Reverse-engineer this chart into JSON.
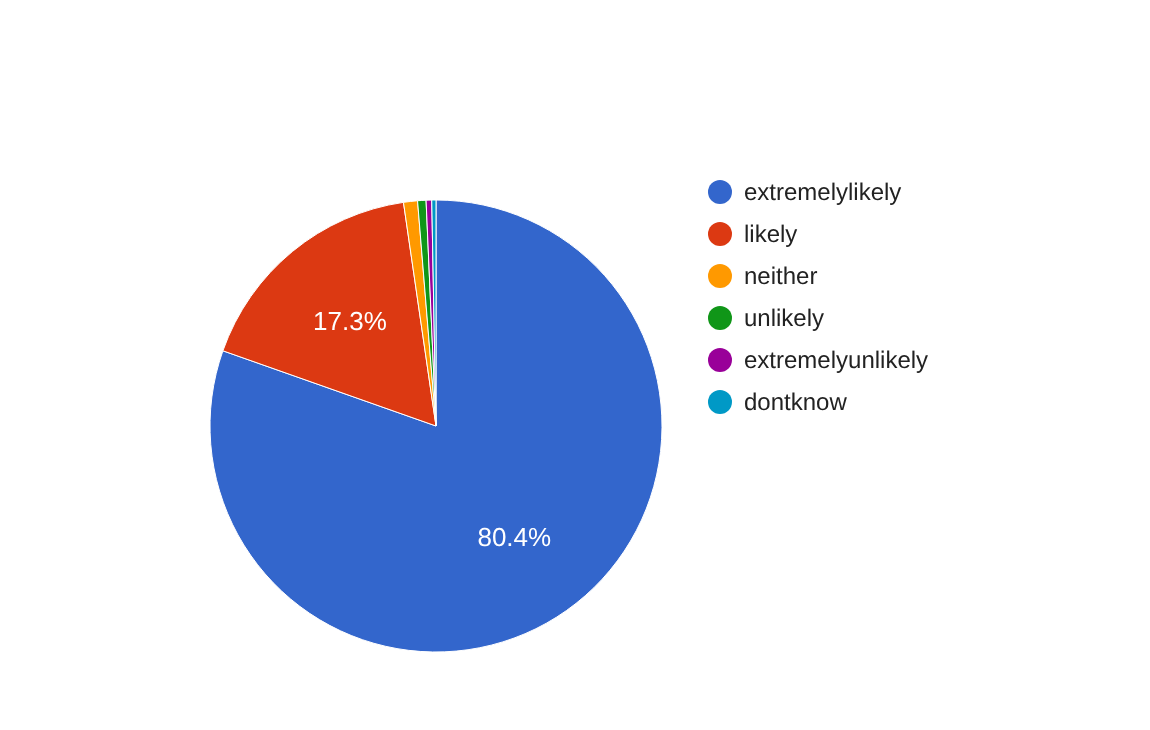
{
  "chart_data": {
    "type": "pie",
    "categories": [
      "extremelylikely",
      "likely",
      "neither",
      "unlikely",
      "extremelyunlikely",
      "dontknow"
    ],
    "values": [
      80.4,
      17.3,
      1.0,
      0.6,
      0.4,
      0.3
    ],
    "colors": [
      "#3366cc",
      "#dc3912",
      "#ff9900",
      "#109618",
      "#990099",
      "#0099c6"
    ],
    "value_labels": [
      "80.4%",
      "17.3%",
      null,
      null,
      null,
      null
    ],
    "legend": "right"
  }
}
